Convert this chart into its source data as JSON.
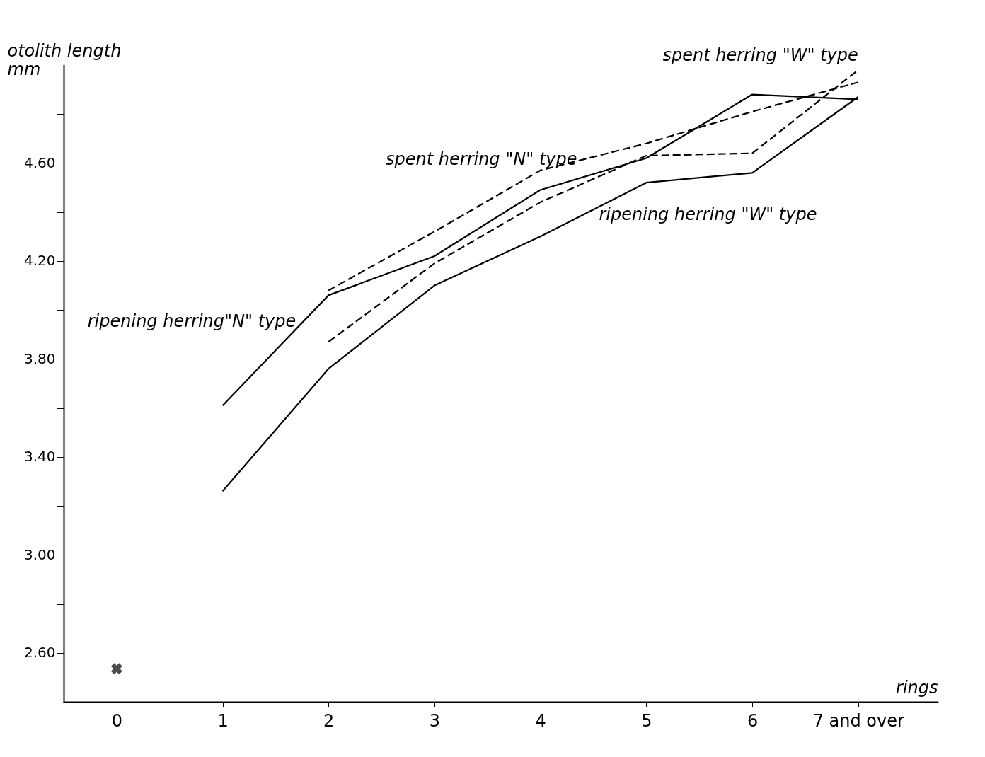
{
  "chart_data": {
    "type": "line",
    "xlabel": "rings",
    "ylabel": "otolith length mm",
    "xlim": [
      -0.5,
      7.75
    ],
    "xticks": [
      0,
      1,
      2,
      3,
      4,
      5,
      6,
      {
        "value": 7,
        "label": "7 and over"
      }
    ],
    "ylim": [
      2.4,
      5.0
    ],
    "yticks": [
      {
        "value": 2.6,
        "label": "2.60"
      },
      {
        "value": 2.8,
        "label": null
      },
      {
        "value": 3.0,
        "label": "3.00"
      },
      {
        "value": 3.2,
        "label": null
      },
      {
        "value": 3.4,
        "label": "3.40"
      },
      {
        "value": 3.6,
        "label": null
      },
      {
        "value": 3.8,
        "label": "3.80"
      },
      {
        "value": 4.0,
        "label": null
      },
      {
        "value": 4.2,
        "label": "4.20"
      },
      {
        "value": 4.4,
        "label": null
      },
      {
        "value": 4.6,
        "label": "4.60"
      },
      {
        "value": 4.8,
        "label": null
      }
    ],
    "grid": false,
    "legend": false,
    "series": [
      {
        "name": "spent herring \"N\" type",
        "color": "#000000",
        "line_style": "dashed",
        "marker": "none",
        "x": [
          2,
          3,
          4,
          5,
          6,
          7
        ],
        "values": [
          4.08,
          4.32,
          4.57,
          4.68,
          4.81,
          4.93
        ]
      },
      {
        "name": "ripening herring \"W\" type",
        "color": "#000000",
        "line_style": "solid",
        "marker": "none",
        "x": [
          1,
          2,
          3,
          4,
          5,
          6,
          7
        ],
        "values": [
          3.26,
          3.76,
          4.1,
          4.3,
          4.52,
          4.56,
          4.87
        ]
      },
      {
        "name": "ripening herring\"N\" type",
        "color": "#000000",
        "line_style": "solid",
        "marker": "none",
        "x": [
          1,
          2,
          3,
          4,
          5,
          6,
          7
        ],
        "values": [
          3.61,
          4.06,
          4.22,
          4.49,
          4.62,
          4.88,
          4.86
        ]
      },
      {
        "name": "spent herring  \"W\" type",
        "color": "#000000",
        "line_style": "dashed",
        "marker": "none",
        "x": [
          2,
          3,
          4,
          5,
          6,
          7
        ],
        "values": [
          3.87,
          4.19,
          4.44,
          4.63,
          4.64,
          4.98
        ]
      },
      {
        "type": "scatter",
        "color": "#000000",
        "marker": "cross",
        "x": [
          0
        ],
        "values": [
          2.535
        ]
      }
    ]
  }
}
